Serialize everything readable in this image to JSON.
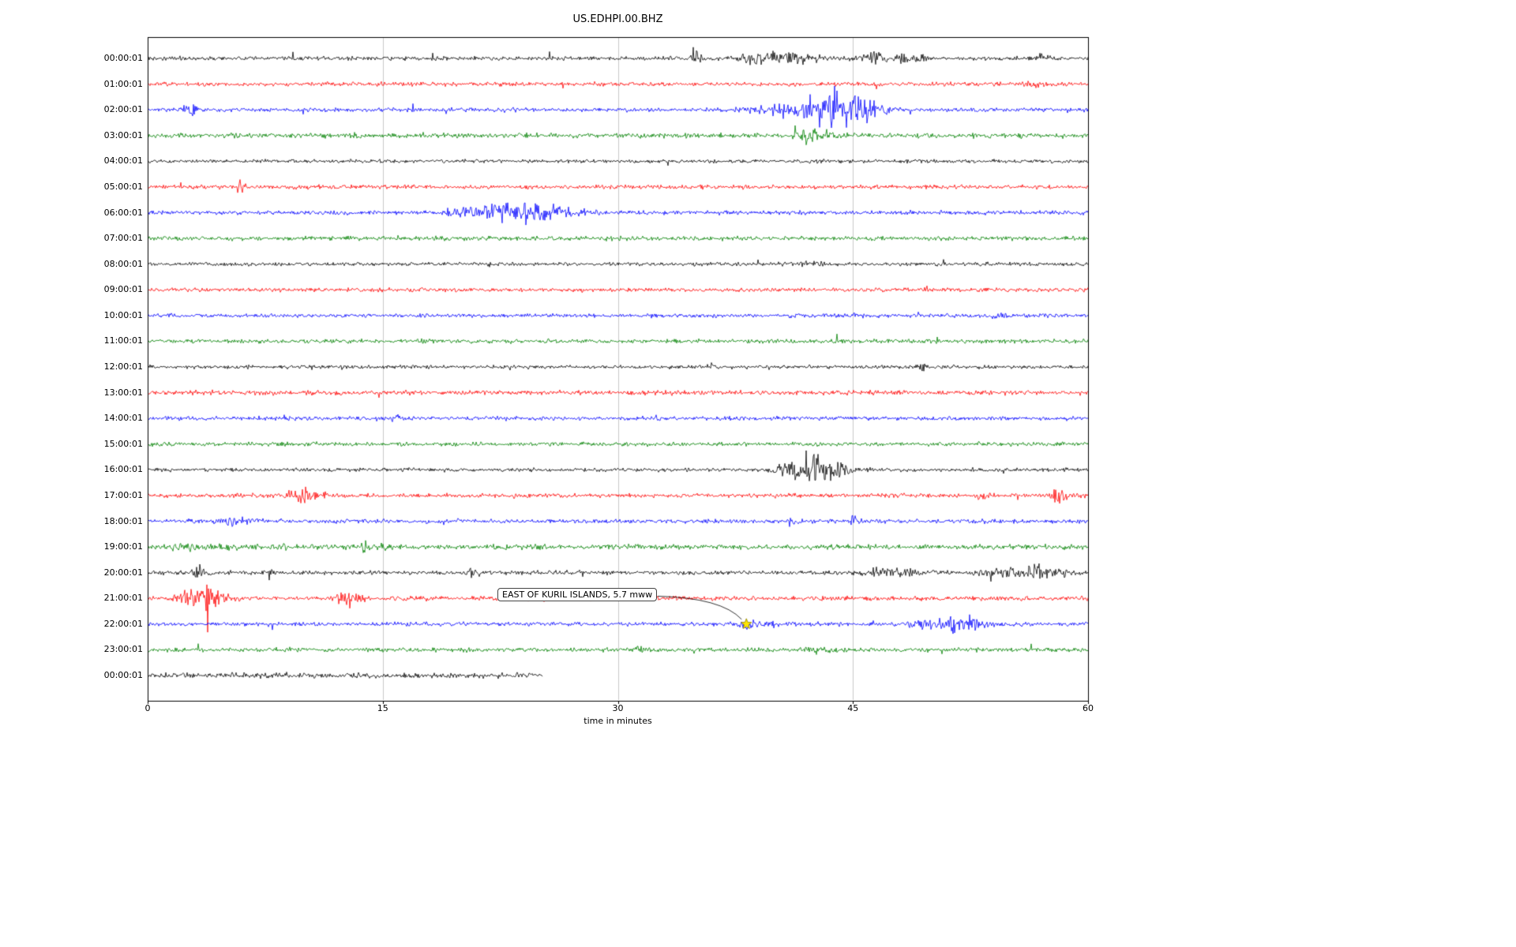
{
  "title": "US.EDHPI.00.BHZ",
  "xlabel": "time in minutes",
  "annotation": {
    "text": "EAST OF KURIL ISLANDS, 5.7 mww",
    "target_row": 22,
    "target_minute": 38.2
  },
  "chart_data": {
    "type": "line",
    "subtype": "helicorder-dayplot",
    "x_range": [
      0,
      60
    ],
    "x_ticks": [
      "0",
      "15",
      "30",
      "45",
      "60"
    ],
    "x_tick_minutes": [
      0,
      15,
      30,
      45,
      60
    ],
    "grid_minutes": [
      15,
      30,
      45
    ],
    "grid_color": "#c9c9c9",
    "trace_color_cycle": [
      "#000000",
      "#ff0000",
      "#0000ff",
      "#008000"
    ],
    "event_marker": {
      "row": 22,
      "minute": 38.2,
      "shape": "star",
      "fill": "#ffe600",
      "edge": "#8f8200"
    },
    "rows": [
      {
        "label": "00:00:01",
        "color": "#000000",
        "amp": 1.0,
        "end_minute": 60,
        "bursts": [
          {
            "t": 34.9,
            "d": 0.12,
            "a": 5
          },
          {
            "t": 38.8,
            "d": 0.8,
            "a": 2.2
          },
          {
            "t": 40.3,
            "d": 0.9,
            "a": 2.0
          },
          {
            "t": 46.3,
            "d": 0.8,
            "a": 2.2
          },
          {
            "t": 48.6,
            "d": 0.3,
            "a": 1.5
          },
          {
            "t": 57.0,
            "d": 0.2,
            "a": 1.5
          }
        ]
      },
      {
        "label": "01:00:01",
        "color": "#ff0000",
        "amp": 1.0,
        "end_minute": 60,
        "bursts": [
          {
            "t": 56.5,
            "d": 0.3,
            "a": 1.2
          }
        ]
      },
      {
        "label": "02:00:01",
        "color": "#0000ff",
        "amp": 1.0,
        "end_minute": 60,
        "bursts": [
          {
            "t": 2.6,
            "d": 0.2,
            "a": 2.5
          },
          {
            "t": 39.5,
            "d": 1.2,
            "a": 2.0
          },
          {
            "t": 42.8,
            "d": 0.8,
            "a": 5.5
          },
          {
            "t": 44.2,
            "d": 0.6,
            "a": 6.5
          },
          {
            "t": 45.3,
            "d": 0.4,
            "a": 3.0
          }
        ]
      },
      {
        "label": "03:00:01",
        "color": "#008000",
        "amp": 1.25,
        "end_minute": 60,
        "bursts": [
          {
            "t": 42.2,
            "d": 0.5,
            "a": 2.2
          }
        ]
      },
      {
        "label": "04:00:01",
        "color": "#000000",
        "amp": 0.9,
        "end_minute": 60,
        "bursts": []
      },
      {
        "label": "05:00:01",
        "color": "#ff0000",
        "amp": 1.0,
        "end_minute": 60,
        "bursts": [
          {
            "t": 5.8,
            "d": 0.08,
            "a": 5.0
          }
        ]
      },
      {
        "label": "06:00:01",
        "color": "#0000ff",
        "amp": 1.0,
        "end_minute": 60,
        "bursts": [
          {
            "t": 20.3,
            "d": 0.8,
            "a": 2.5
          },
          {
            "t": 23.3,
            "d": 1.2,
            "a": 3.5
          },
          {
            "t": 24.8,
            "d": 0.5,
            "a": 2.0
          }
        ]
      },
      {
        "label": "07:00:01",
        "color": "#008000",
        "amp": 1.1,
        "end_minute": 60,
        "bursts": []
      },
      {
        "label": "08:00:01",
        "color": "#000000",
        "amp": 0.95,
        "end_minute": 60,
        "bursts": [
          {
            "t": 42.0,
            "d": 0.3,
            "a": 1.2
          }
        ]
      },
      {
        "label": "09:00:01",
        "color": "#ff0000",
        "amp": 1.0,
        "end_minute": 60,
        "bursts": []
      },
      {
        "label": "10:00:01",
        "color": "#0000ff",
        "amp": 1.0,
        "end_minute": 60,
        "bursts": [
          {
            "t": 54.0,
            "d": 0.2,
            "a": 1.3
          }
        ]
      },
      {
        "label": "11:00:01",
        "color": "#008000",
        "amp": 1.05,
        "end_minute": 60,
        "bursts": []
      },
      {
        "label": "12:00:01",
        "color": "#000000",
        "amp": 0.9,
        "end_minute": 60,
        "bursts": [
          {
            "t": 49.3,
            "d": 0.15,
            "a": 2.0
          }
        ]
      },
      {
        "label": "13:00:01",
        "color": "#ff0000",
        "amp": 1.15,
        "end_minute": 60,
        "bursts": []
      },
      {
        "label": "14:00:01",
        "color": "#0000ff",
        "amp": 1.0,
        "end_minute": 60,
        "bursts": [
          {
            "t": 15.5,
            "d": 0.2,
            "a": 1.5
          }
        ]
      },
      {
        "label": "15:00:01",
        "color": "#008000",
        "amp": 1.0,
        "end_minute": 60,
        "bursts": []
      },
      {
        "label": "16:00:01",
        "color": "#000000",
        "amp": 0.95,
        "end_minute": 60,
        "bursts": [
          {
            "t": 41.0,
            "d": 0.7,
            "a": 6.0
          },
          {
            "t": 42.6,
            "d": 0.7,
            "a": 3.5
          }
        ]
      },
      {
        "label": "17:00:01",
        "color": "#ff0000",
        "amp": 1.0,
        "end_minute": 60,
        "bursts": [
          {
            "t": 9.5,
            "d": 0.5,
            "a": 3.5
          },
          {
            "t": 53.0,
            "d": 0.2,
            "a": 1.5
          },
          {
            "t": 57.9,
            "d": 0.25,
            "a": 3.5
          }
        ]
      },
      {
        "label": "18:00:01",
        "color": "#0000ff",
        "amp": 1.0,
        "end_minute": 60,
        "bursts": [
          {
            "t": 5.2,
            "d": 0.5,
            "a": 2.2
          },
          {
            "t": 41.0,
            "d": 0.15,
            "a": 2.5
          },
          {
            "t": 44.9,
            "d": 0.15,
            "a": 2.0
          }
        ]
      },
      {
        "label": "19:00:01",
        "color": "#008000",
        "amp": 1.2,
        "end_minute": 60,
        "bursts": [
          {
            "t": 3.0,
            "d": 1.5,
            "a": 0.8
          },
          {
            "t": 13.8,
            "d": 0.3,
            "a": 1.5
          }
        ]
      },
      {
        "label": "20:00:01",
        "color": "#000000",
        "amp": 1.0,
        "end_minute": 60,
        "bursts": [
          {
            "t": 3.1,
            "d": 0.2,
            "a": 3.0
          },
          {
            "t": 7.6,
            "d": 0.12,
            "a": 4.0
          },
          {
            "t": 20.6,
            "d": 0.15,
            "a": 2.5
          },
          {
            "t": 46.8,
            "d": 0.8,
            "a": 1.8
          },
          {
            "t": 53.6,
            "d": 0.2,
            "a": 2.0
          },
          {
            "t": 55.2,
            "d": 1.2,
            "a": 2.0
          },
          {
            "t": 56.6,
            "d": 0.2,
            "a": 4.0
          }
        ]
      },
      {
        "label": "21:00:01",
        "color": "#ff0000",
        "amp": 1.1,
        "end_minute": 60,
        "bursts": [
          {
            "t": 2.8,
            "d": 0.6,
            "a": 4.0
          },
          {
            "t": 3.6,
            "d": 0.3,
            "a": 3.0
          },
          {
            "t": 12.6,
            "d": 0.4,
            "a": 2.5
          }
        ]
      },
      {
        "label": "22:00:01",
        "color": "#0000ff",
        "amp": 1.0,
        "end_minute": 60,
        "bursts": [
          {
            "t": 38.2,
            "d": 0.6,
            "a": 1.5
          },
          {
            "t": 49.3,
            "d": 0.4,
            "a": 2.5
          },
          {
            "t": 51.5,
            "d": 0.6,
            "a": 3.0
          },
          {
            "t": 52.6,
            "d": 0.3,
            "a": 2.0
          }
        ]
      },
      {
        "label": "23:00:01",
        "color": "#008000",
        "amp": 1.05,
        "end_minute": 60,
        "bursts": [
          {
            "t": 31.2,
            "d": 0.2,
            "a": 1.5
          },
          {
            "t": 42.5,
            "d": 0.4,
            "a": 1.2
          }
        ]
      },
      {
        "label": "00:00:01",
        "color": "#000000",
        "amp": 1.3,
        "end_minute": 25.2,
        "bursts": []
      }
    ]
  }
}
